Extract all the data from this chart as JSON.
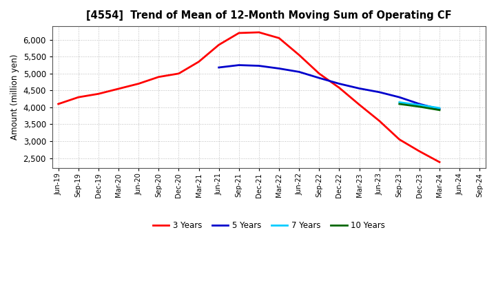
{
  "title": "[4554]  Trend of Mean of 12-Month Moving Sum of Operating CF",
  "ylabel": "Amount (million yen)",
  "background_color": "#ffffff",
  "grid_color": "#bbbbbb",
  "ylim": [
    2200,
    6400
  ],
  "yticks": [
    2500,
    3000,
    3500,
    4000,
    4500,
    5000,
    5500,
    6000
  ],
  "x_labels": [
    "Jun-19",
    "Sep-19",
    "Dec-19",
    "Mar-20",
    "Jun-20",
    "Sep-20",
    "Dec-20",
    "Mar-21",
    "Jun-21",
    "Sep-21",
    "Dec-21",
    "Mar-22",
    "Jun-22",
    "Sep-22",
    "Dec-22",
    "Mar-23",
    "Jun-23",
    "Sep-23",
    "Dec-23",
    "Mar-24",
    "Jun-24",
    "Sep-24"
  ],
  "series": [
    {
      "label": "3 Years",
      "color": "#ff0000",
      "lw": 2.0,
      "x": [
        0,
        1,
        2,
        3,
        4,
        5,
        6,
        7,
        8,
        9,
        10,
        11,
        12,
        13,
        14,
        15,
        16,
        17,
        18,
        19
      ],
      "y": [
        4100,
        4300,
        4400,
        4550,
        4700,
        4900,
        5000,
        5350,
        5850,
        6200,
        6220,
        6050,
        5550,
        5000,
        4580,
        4080,
        3600,
        3050,
        2700,
        2380
      ]
    },
    {
      "label": "5 Years",
      "color": "#0000cc",
      "lw": 2.0,
      "x": [
        8,
        9,
        10,
        11,
        12,
        13,
        14,
        15,
        16,
        17,
        18,
        19
      ],
      "y": [
        5180,
        5250,
        5230,
        5150,
        5050,
        4870,
        4700,
        4560,
        4450,
        4300,
        4100,
        3950
      ]
    },
    {
      "label": "7 Years",
      "color": "#00ccff",
      "lw": 2.0,
      "x": [
        17,
        18,
        19
      ],
      "y": [
        4150,
        4070,
        3980
      ]
    },
    {
      "label": "10 Years",
      "color": "#006600",
      "lw": 2.0,
      "x": [
        17,
        18,
        19
      ],
      "y": [
        4100,
        4020,
        3920
      ]
    }
  ]
}
